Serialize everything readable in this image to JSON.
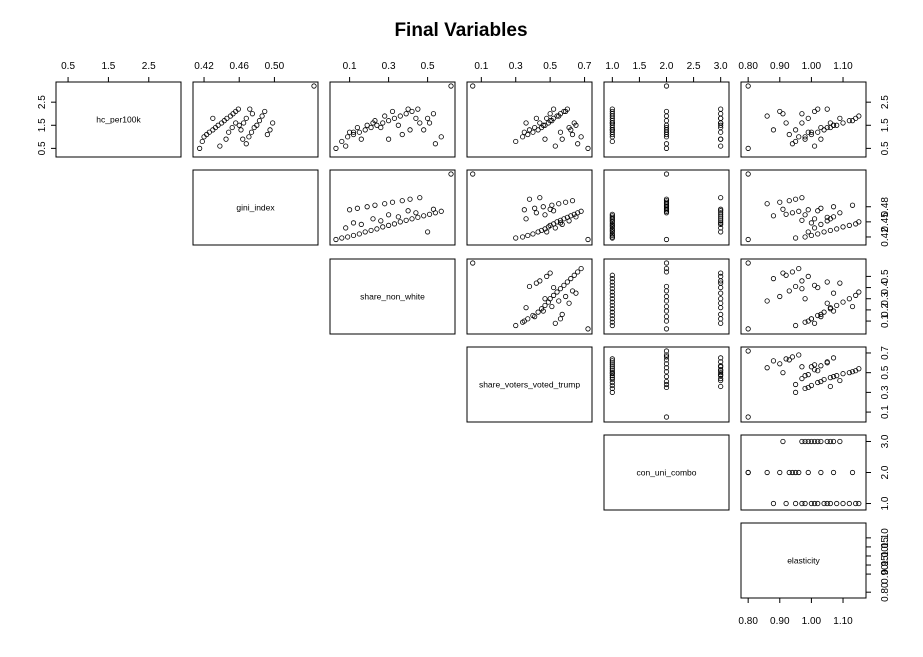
{
  "chart_data": {
    "type": "scatter",
    "title": "Final Variables",
    "layout": "upper-triangle scatterplot matrix",
    "variables": [
      {
        "name": "hc_per100k",
        "range": [
          0.3,
          3.2
        ],
        "ticks": [
          0.5,
          1.5,
          2.5
        ],
        "tick_labels": [
          "0.5",
          "1.5",
          "2.5"
        ],
        "values": [
          3.2,
          0.5,
          0.8,
          1.0,
          1.1,
          1.2,
          1.3,
          1.4,
          1.5,
          1.6,
          1.7,
          1.8,
          1.9,
          2.0,
          2.1,
          2.2,
          1.3,
          1.6,
          0.7,
          1.0,
          1.2,
          1.4,
          1.5,
          1.7,
          1.9,
          2.1,
          1.1,
          1.3,
          1.6,
          1.8,
          0.6,
          0.9,
          1.4,
          1.5,
          1.8,
          2.0,
          1.2,
          1.6,
          0.9,
          2.2
        ]
      },
      {
        "name": "gini_index",
        "range": [
          0.412,
          0.545
        ],
        "ticks": [
          0.42,
          0.46,
          0.5
        ],
        "tick_labels": [
          "0.42",
          "0.46",
          "0.50"
        ],
        "right_tick_labels": [
          "0.42",
          "0.45",
          "0.48"
        ],
        "values": [
          0.545,
          0.415,
          0.418,
          0.42,
          0.423,
          0.426,
          0.43,
          0.433,
          0.436,
          0.44,
          0.443,
          0.446,
          0.45,
          0.453,
          0.456,
          0.459,
          0.462,
          0.465,
          0.468,
          0.471,
          0.474,
          0.477,
          0.48,
          0.483,
          0.486,
          0.489,
          0.492,
          0.495,
          0.498,
          0.43,
          0.438,
          0.445,
          0.452,
          0.46,
          0.468,
          0.475,
          0.448,
          0.456,
          0.464,
          0.472
        ]
      },
      {
        "name": "share_non_white",
        "range": [
          0.02,
          0.62
        ],
        "ticks": [
          0.1,
          0.3,
          0.5
        ],
        "tick_labels": [
          "0.1",
          "0.3",
          "0.5"
        ],
        "right_tick_labels": [
          "0.1",
          "0.2",
          "0.3",
          "0.4",
          "0.5"
        ],
        "values": [
          0.62,
          0.03,
          0.06,
          0.09,
          0.12,
          0.15,
          0.18,
          0.21,
          0.24,
          0.27,
          0.3,
          0.33,
          0.36,
          0.39,
          0.42,
          0.45,
          0.48,
          0.51,
          0.54,
          0.57,
          0.1,
          0.14,
          0.19,
          0.23,
          0.28,
          0.32,
          0.37,
          0.41,
          0.46,
          0.5,
          0.08,
          0.16,
          0.26,
          0.35,
          0.44,
          0.53,
          0.12,
          0.22,
          0.3,
          0.4
        ]
      },
      {
        "name": "share_voters_voted_trump",
        "range": [
          0.04,
          0.72
        ],
        "ticks": [
          0.1,
          0.3,
          0.5,
          0.7
        ],
        "tick_labels": [
          "0.1",
          "0.3",
          "0.5",
          "0.7"
        ],
        "right_tick_labels": [
          "0.1",
          "0.3",
          "0.5",
          "0.7"
        ],
        "values": [
          0.05,
          0.72,
          0.3,
          0.34,
          0.37,
          0.4,
          0.43,
          0.45,
          0.47,
          0.49,
          0.5,
          0.52,
          0.54,
          0.56,
          0.58,
          0.6,
          0.62,
          0.64,
          0.66,
          0.68,
          0.35,
          0.41,
          0.46,
          0.51,
          0.55,
          0.59,
          0.63,
          0.38,
          0.44,
          0.48,
          0.53,
          0.57,
          0.61,
          0.65,
          0.42,
          0.5,
          0.56,
          0.36,
          0.47,
          0.52
        ]
      },
      {
        "name": "con_uni_combo",
        "range": [
          0.92,
          3.08
        ],
        "ticks": [
          1.0,
          1.5,
          2.0,
          2.5,
          3.0
        ],
        "tick_labels": [
          "1.0",
          "1.5",
          "2.0",
          "2.5",
          "3.0"
        ],
        "right_tick_labels": [
          "1.0",
          "2.0",
          "3.0"
        ],
        "values": [
          2,
          2,
          1,
          1,
          1,
          1,
          1,
          1,
          1,
          1,
          1,
          1,
          1,
          1,
          1,
          1,
          1,
          1,
          2,
          2,
          2,
          2,
          2,
          2,
          2,
          2,
          2,
          2,
          3,
          3,
          3,
          3,
          3,
          3,
          3,
          3,
          3,
          3,
          3,
          3
        ]
      },
      {
        "name": "elasticity",
        "range": [
          0.79,
          1.16
        ],
        "ticks": [
          0.8,
          0.9,
          1.0,
          1.1
        ],
        "tick_labels": [
          "0.80",
          "0.90",
          "1.00",
          "1.10"
        ],
        "right_tick_labels": [
          "0.80",
          "0.90",
          "0.95",
          "1.00",
          "1.05",
          "1.10"
        ],
        "values": [
          0.8,
          0.8,
          0.95,
          0.98,
          1.0,
          1.02,
          1.04,
          1.06,
          1.08,
          1.1,
          1.12,
          1.14,
          1.15,
          0.97,
          1.01,
          1.05,
          0.88,
          0.92,
          0.94,
          0.96,
          0.99,
          1.03,
          1.07,
          1.13,
          0.86,
          0.9,
          0.93,
          0.95,
          0.97,
          0.99,
          1.01,
          1.03,
          1.05,
          1.07,
          1.09,
          0.91,
          1.0,
          1.06,
          0.98,
          1.02
        ]
      }
    ],
    "grid": false,
    "legend": "none"
  }
}
